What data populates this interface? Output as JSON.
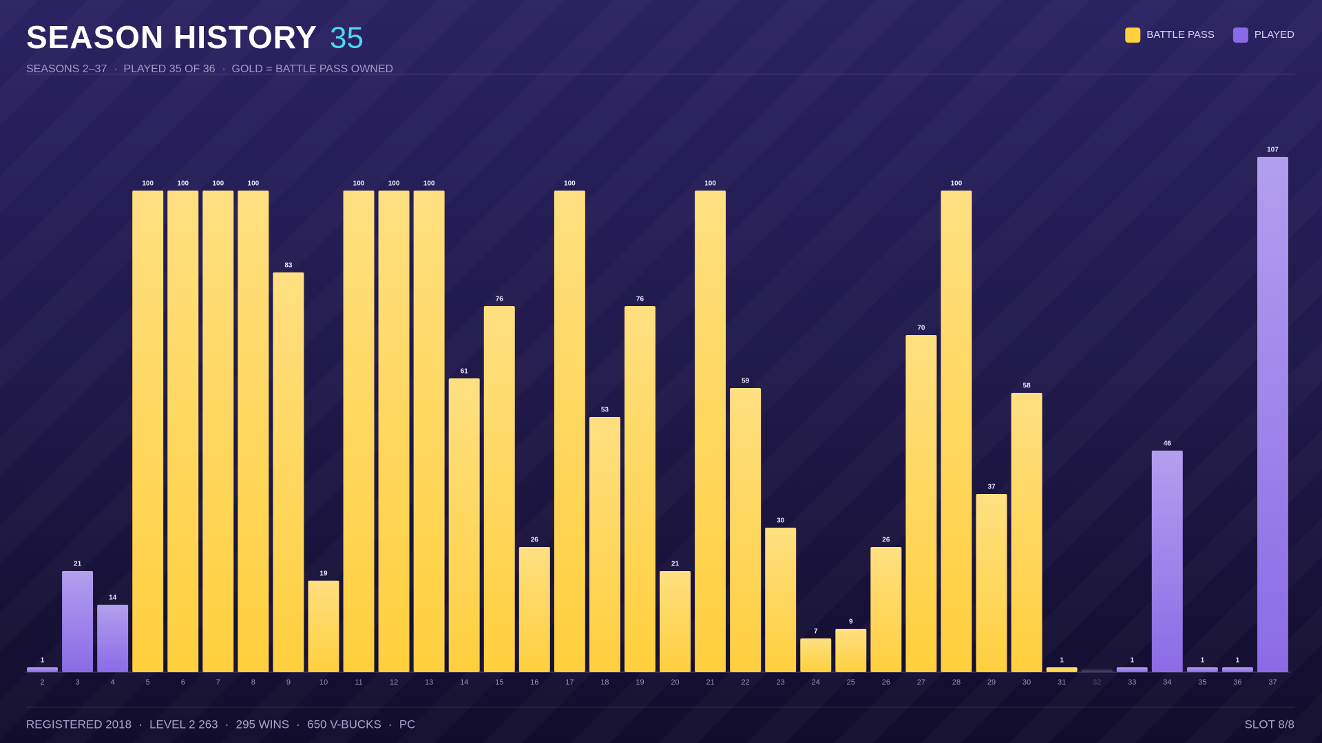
{
  "header": {
    "title": "SEASON HISTORY",
    "count": 35,
    "subtitle": [
      "SEASONS 2–37",
      "PLAYED 35 OF 36",
      "GOLD = BATTLE PASS OWNED"
    ]
  },
  "chart_data": {
    "type": "bar",
    "categories": [
      2,
      3,
      4,
      5,
      6,
      7,
      8,
      9,
      10,
      11,
      12,
      13,
      14,
      15,
      16,
      17,
      18,
      19,
      20,
      21,
      22,
      23,
      24,
      25,
      26,
      27,
      28,
      29,
      30,
      31,
      32,
      33,
      34,
      35,
      36,
      37
    ],
    "series": [
      {
        "name": "BATTLE PASS",
        "color": "#ffcf3d",
        "values": [
          null,
          null,
          null,
          100,
          100,
          100,
          100,
          83,
          19,
          100,
          100,
          100,
          61,
          76,
          26,
          100,
          53,
          76,
          21,
          100,
          59,
          30,
          7,
          9,
          26,
          70,
          100,
          37,
          58,
          1,
          null,
          null,
          null,
          null,
          null,
          null
        ]
      },
      {
        "name": "PLAYED",
        "color": "#8a6be6",
        "values": [
          1,
          21,
          14,
          null,
          null,
          null,
          null,
          null,
          null,
          null,
          null,
          null,
          null,
          null,
          null,
          null,
          null,
          null,
          null,
          null,
          null,
          null,
          null,
          null,
          null,
          null,
          null,
          null,
          null,
          null,
          null,
          1,
          46,
          1,
          1,
          107
        ]
      }
    ],
    "ylim": [
      0,
      107
    ]
  },
  "footer": {
    "items": [
      "REGISTERED 2018",
      "LEVEL 2 263",
      "295 WINS",
      "650 V-BUCKS",
      "PC"
    ],
    "slot": "SLOT 8/8"
  }
}
